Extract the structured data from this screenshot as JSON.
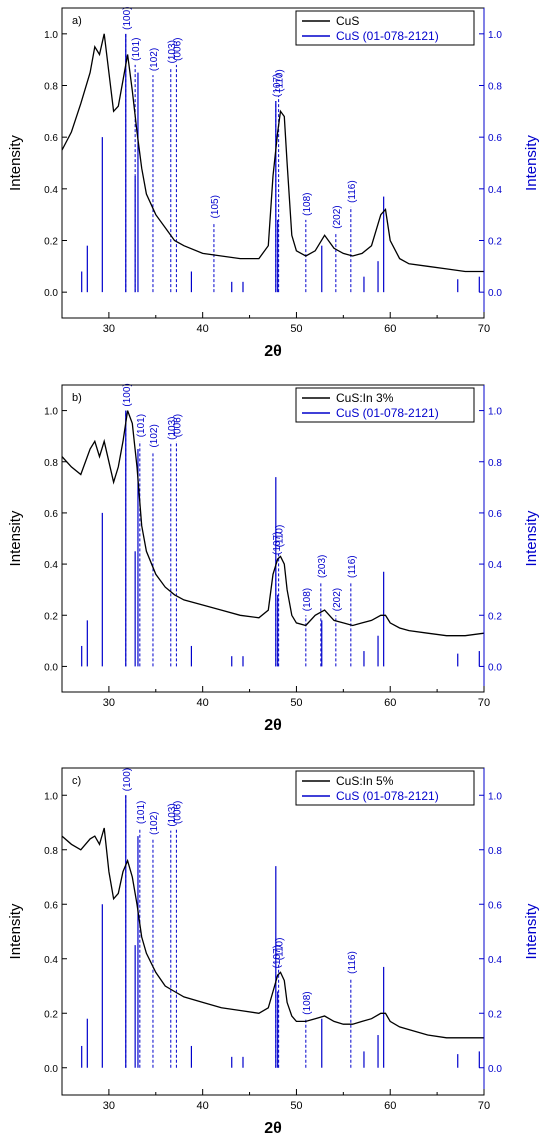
{
  "figure": {
    "panels": [
      {
        "panel_label": "a)",
        "xlabel": "2θ",
        "ylabel_left": "Intensity",
        "ylabel_right": "Intensity",
        "legend": [
          "CuS",
          "CuS (01-078-2121)"
        ],
        "legend_position": "top-right"
      },
      {
        "panel_label": "b)",
        "xlabel": "2θ",
        "ylabel_left": "Intensity",
        "ylabel_right": "Intensity",
        "legend": [
          "CuS:In 3%",
          "CuS (01-078-2121)"
        ],
        "legend_position": "top-right"
      },
      {
        "panel_label": "c)",
        "xlabel": "2θ",
        "ylabel_left": "Intensity",
        "ylabel_right": "Intensity",
        "legend": [
          "CuS:In 5%",
          "CuS (01-078-2121)"
        ],
        "legend_position": "top-right"
      }
    ],
    "colors": {
      "measured": "#000000",
      "reference": "#0000cc"
    }
  },
  "chart_data": [
    {
      "type": "line",
      "xlim": [
        25,
        70
      ],
      "ylim": [
        -0.1,
        1.1
      ],
      "y2lim": [
        -0.1,
        1.1
      ],
      "x_ticks": [
        30,
        40,
        50,
        60,
        70
      ],
      "y_ticks": [
        0.0,
        0.2,
        0.4,
        0.6,
        0.8,
        1.0
      ],
      "y_tick_labels": [
        "0.0",
        "0.2",
        "0.4",
        "0.6",
        "0.8",
        "1.0"
      ],
      "series": [
        {
          "name": "CuS",
          "x": [
            25,
            26,
            27,
            28,
            28.5,
            29,
            29.5,
            30,
            30.5,
            31,
            31.5,
            32,
            32.5,
            33,
            33.5,
            34,
            35,
            36,
            37,
            38,
            40,
            42,
            44,
            46,
            47,
            47.5,
            48,
            48.3,
            48.7,
            49,
            49.5,
            50,
            51,
            52,
            53,
            54,
            55,
            56,
            57,
            58,
            59,
            59.5,
            60,
            61,
            62,
            64,
            66,
            68,
            70
          ],
          "y": [
            0.55,
            0.62,
            0.73,
            0.85,
            0.95,
            0.92,
            1.0,
            0.85,
            0.7,
            0.72,
            0.82,
            0.92,
            0.78,
            0.62,
            0.48,
            0.38,
            0.3,
            0.25,
            0.2,
            0.18,
            0.15,
            0.14,
            0.13,
            0.13,
            0.18,
            0.45,
            0.62,
            0.7,
            0.68,
            0.5,
            0.22,
            0.16,
            0.14,
            0.16,
            0.22,
            0.17,
            0.15,
            0.14,
            0.15,
            0.18,
            0.3,
            0.32,
            0.2,
            0.13,
            0.11,
            0.1,
            0.09,
            0.08,
            0.08
          ]
        },
        {
          "name": "CuS (01-078-2121)",
          "sticks_x": [
            27.1,
            27.7,
            29.3,
            31.8,
            32.8,
            33.1,
            38.8,
            43.1,
            44.3,
            47.8,
            48.0,
            52.7,
            57.2,
            58.7,
            59.3,
            67.2,
            69.5
          ],
          "sticks_y": [
            0.08,
            0.18,
            0.6,
            1.0,
            0.45,
            0.85,
            0.08,
            0.04,
            0.04,
            0.74,
            0.28,
            0.18,
            0.06,
            0.12,
            0.37,
            0.05,
            0.06
          ]
        }
      ],
      "annotations": [
        {
          "text": "(100)",
          "x": 31.8,
          "y_top": 1.0
        },
        {
          "text": "(101)",
          "x": 32.8,
          "y_top": 0.88
        },
        {
          "text": "(102)",
          "x": 34.7,
          "y_top": 0.84
        },
        {
          "text": "(103)",
          "x": 36.6,
          "y_top": 0.87
        },
        {
          "text": "(006)",
          "x": 37.2,
          "y_top": 0.88
        },
        {
          "text": "(105)",
          "x": 41.2,
          "y_top": 0.27
        },
        {
          "text": "(107)",
          "x": 47.8,
          "y_top": 0.74
        },
        {
          "text": "(110)",
          "x": 48.1,
          "y_top": 0.76
        },
        {
          "text": "(108)",
          "x": 51.0,
          "y_top": 0.28
        },
        {
          "text": "(202)",
          "x": 54.2,
          "y_top": 0.23
        },
        {
          "text": "(116)",
          "x": 55.8,
          "y_top": 0.33
        }
      ]
    },
    {
      "type": "line",
      "xlim": [
        25,
        70
      ],
      "ylim": [
        -0.1,
        1.1
      ],
      "y2lim": [
        -0.1,
        1.1
      ],
      "x_ticks": [
        30,
        40,
        50,
        60,
        70
      ],
      "y_ticks": [
        0.0,
        0.2,
        0.4,
        0.6,
        0.8,
        1.0
      ],
      "y_tick_labels": [
        "0.0",
        "0.2",
        "0.4",
        "0.6",
        "0.8",
        "1.0"
      ],
      "series": [
        {
          "name": "CuS:In 3%",
          "x": [
            25,
            26,
            27,
            28,
            28.5,
            29,
            29.5,
            30,
            30.5,
            31,
            31.5,
            32,
            32.5,
            33,
            33.5,
            34,
            35,
            36,
            37,
            38,
            40,
            42,
            44,
            46,
            47,
            47.5,
            48,
            48.3,
            48.7,
            49,
            49.5,
            50,
            51,
            52,
            53,
            54,
            55,
            56,
            57,
            58,
            59,
            59.5,
            60,
            61,
            62,
            64,
            66,
            68,
            70
          ],
          "y": [
            0.82,
            0.78,
            0.75,
            0.85,
            0.88,
            0.82,
            0.88,
            0.8,
            0.72,
            0.78,
            0.88,
            1.0,
            0.95,
            0.78,
            0.55,
            0.45,
            0.36,
            0.31,
            0.28,
            0.26,
            0.24,
            0.22,
            0.2,
            0.19,
            0.22,
            0.36,
            0.42,
            0.43,
            0.4,
            0.3,
            0.2,
            0.17,
            0.16,
            0.2,
            0.22,
            0.18,
            0.17,
            0.16,
            0.17,
            0.18,
            0.2,
            0.2,
            0.17,
            0.15,
            0.14,
            0.13,
            0.12,
            0.12,
            0.13
          ]
        },
        {
          "name": "CuS (01-078-2121)",
          "sticks_x": [
            27.1,
            27.7,
            29.3,
            31.8,
            32.8,
            33.1,
            38.8,
            43.1,
            44.3,
            47.8,
            48.0,
            52.7,
            57.2,
            58.7,
            59.3,
            67.2,
            69.5
          ],
          "sticks_y": [
            0.08,
            0.18,
            0.6,
            1.0,
            0.45,
            0.85,
            0.08,
            0.04,
            0.04,
            0.74,
            0.28,
            0.18,
            0.06,
            0.12,
            0.37,
            0.05,
            0.06
          ]
        }
      ],
      "annotations": [
        {
          "text": "(100)",
          "x": 31.8,
          "y_top": 1.0
        },
        {
          "text": "(101)",
          "x": 33.3,
          "y_top": 0.88
        },
        {
          "text": "(102)",
          "x": 34.7,
          "y_top": 0.84
        },
        {
          "text": "(103)",
          "x": 36.6,
          "y_top": 0.87
        },
        {
          "text": "(006)",
          "x": 37.2,
          "y_top": 0.88
        },
        {
          "text": "(107)",
          "x": 47.8,
          "y_top": 0.42
        },
        {
          "text": "(110)",
          "x": 48.1,
          "y_top": 0.45
        },
        {
          "text": "(108)",
          "x": 51.0,
          "y_top": 0.2
        },
        {
          "text": "(203)",
          "x": 52.6,
          "y_top": 0.33
        },
        {
          "text": "(202)",
          "x": 54.2,
          "y_top": 0.2
        },
        {
          "text": "(116)",
          "x": 55.8,
          "y_top": 0.33
        }
      ]
    },
    {
      "type": "line",
      "xlim": [
        25,
        70
      ],
      "ylim": [
        -0.1,
        1.1
      ],
      "y2lim": [
        -0.1,
        1.1
      ],
      "x_ticks": [
        30,
        40,
        50,
        60,
        70
      ],
      "y_ticks": [
        0.0,
        0.2,
        0.4,
        0.6,
        0.8,
        1.0
      ],
      "y_tick_labels": [
        "0.0",
        "0.2",
        "0.4",
        "0.6",
        "0.8",
        "1.0"
      ],
      "series": [
        {
          "name": "CuS:In 5%",
          "x": [
            25,
            26,
            27,
            28,
            28.5,
            29,
            29.5,
            30,
            30.5,
            31,
            31.5,
            32,
            32.5,
            33,
            33.5,
            34,
            35,
            36,
            37,
            38,
            40,
            42,
            44,
            46,
            47,
            47.5,
            48,
            48.3,
            48.7,
            49,
            49.5,
            50,
            51,
            52,
            53,
            54,
            55,
            56,
            57,
            58,
            59,
            59.5,
            60,
            61,
            62,
            64,
            66,
            68,
            70
          ],
          "y": [
            0.85,
            0.82,
            0.8,
            0.84,
            0.85,
            0.82,
            0.88,
            0.72,
            0.62,
            0.64,
            0.72,
            0.76,
            0.7,
            0.6,
            0.48,
            0.42,
            0.35,
            0.3,
            0.28,
            0.26,
            0.24,
            0.22,
            0.21,
            0.2,
            0.22,
            0.28,
            0.34,
            0.35,
            0.32,
            0.24,
            0.19,
            0.17,
            0.17,
            0.18,
            0.19,
            0.17,
            0.16,
            0.16,
            0.17,
            0.18,
            0.2,
            0.2,
            0.17,
            0.15,
            0.14,
            0.12,
            0.11,
            0.11,
            0.11
          ]
        },
        {
          "name": "CuS (01-078-2121)",
          "sticks_x": [
            27.1,
            27.7,
            29.3,
            31.8,
            32.8,
            33.1,
            38.8,
            43.1,
            44.3,
            47.8,
            48.0,
            52.7,
            57.2,
            58.7,
            59.3,
            67.2,
            69.5
          ],
          "sticks_y": [
            0.08,
            0.18,
            0.6,
            1.0,
            0.45,
            0.85,
            0.08,
            0.04,
            0.04,
            0.74,
            0.28,
            0.18,
            0.06,
            0.12,
            0.37,
            0.05,
            0.06
          ]
        }
      ],
      "annotations": [
        {
          "text": "(100)",
          "x": 31.8,
          "y_top": 1.0
        },
        {
          "text": "(101)",
          "x": 33.3,
          "y_top": 0.88
        },
        {
          "text": "(102)",
          "x": 34.7,
          "y_top": 0.84
        },
        {
          "text": "(103)",
          "x": 36.6,
          "y_top": 0.87
        },
        {
          "text": "(006)",
          "x": 37.2,
          "y_top": 0.88
        },
        {
          "text": "(107)",
          "x": 47.8,
          "y_top": 0.35
        },
        {
          "text": "(110)",
          "x": 48.1,
          "y_top": 0.38
        },
        {
          "text": "(108)",
          "x": 51.0,
          "y_top": 0.18
        },
        {
          "text": "(116)",
          "x": 55.8,
          "y_top": 0.33
        }
      ]
    }
  ]
}
